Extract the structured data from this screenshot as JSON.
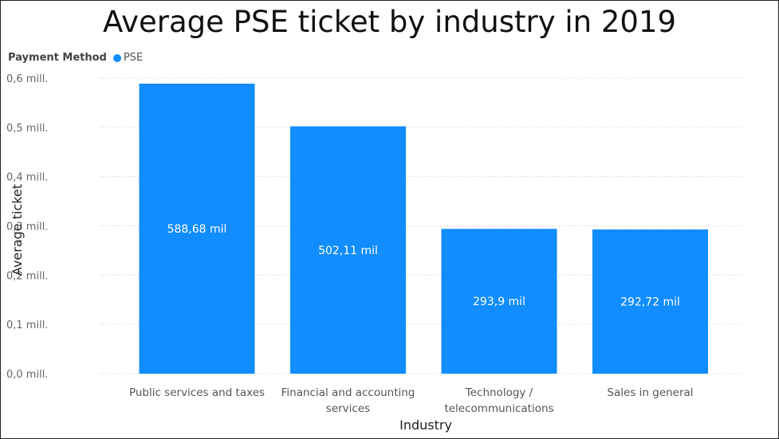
{
  "chart_data": {
    "type": "bar",
    "title": "Average PSE ticket by industry in 2019",
    "legend": {
      "title": "Payment Method",
      "placement": "top-left"
    },
    "categories": [
      [
        "Public services and taxes"
      ],
      [
        "Financial and accounting",
        "services"
      ],
      [
        "Technology /",
        "telecommunications"
      ],
      [
        "Sales in general"
      ]
    ],
    "series": [
      {
        "name": "PSE",
        "color": "#118DFF",
        "values": [
          588680,
          502110,
          293900,
          292720
        ],
        "data_labels": [
          "588,68 mil",
          "502,11 mil",
          "293,9 mil",
          "292,72 mil"
        ]
      }
    ],
    "xlabel": "Industry",
    "ylabel": "Average ticket",
    "ylim": [
      0,
      600000
    ],
    "y_ticks": [
      {
        "value": 0,
        "label": "0,0 mill."
      },
      {
        "value": 100000,
        "label": "0,1 mill."
      },
      {
        "value": 200000,
        "label": "0,2 mill."
      },
      {
        "value": 300000,
        "label": "0,3 mill."
      },
      {
        "value": 400000,
        "label": "0,4 mill."
      },
      {
        "value": 500000,
        "label": "0,5 mill."
      },
      {
        "value": 600000,
        "label": "0,6 mill."
      }
    ],
    "grid": true,
    "grid_style": "dotted"
  }
}
